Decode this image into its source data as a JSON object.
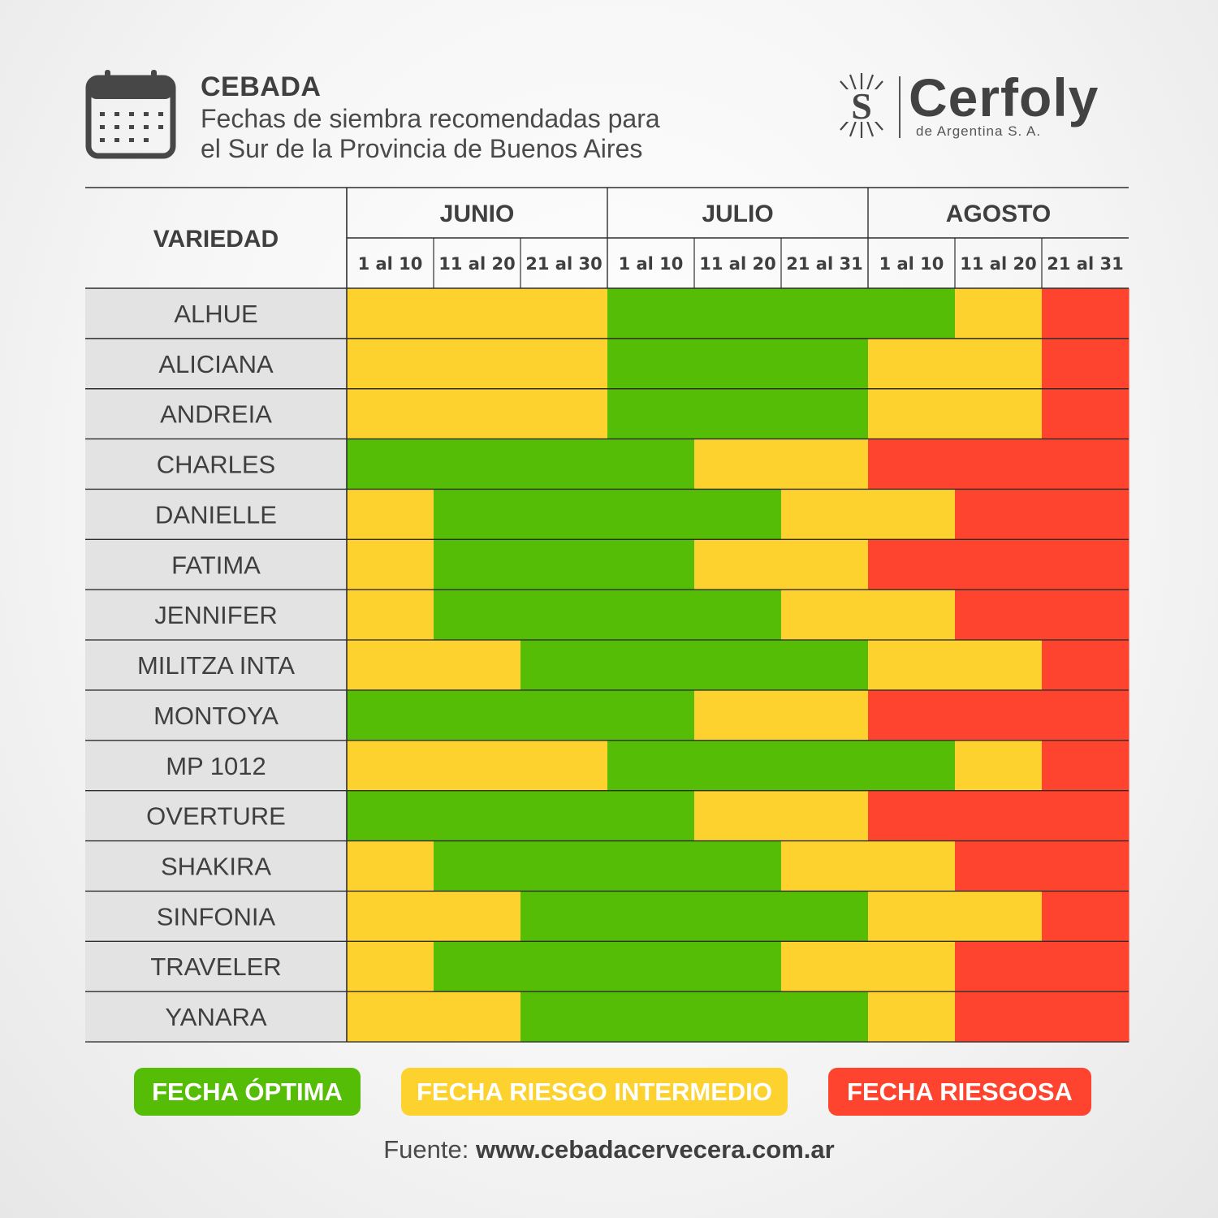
{
  "header": {
    "title": "CEBADA",
    "subtitle_line1": "Fechas de siembra recomendadas para",
    "subtitle_line2": "el Sur de la Provincia de Buenos Aires",
    "calendar_icon": "calendar-icon"
  },
  "logo": {
    "name": "Cerfoly",
    "subname": "de Argentina S. A.",
    "mark_letter": "S"
  },
  "colors": {
    "optima": "#55bd06",
    "intermedio": "#fdd22e",
    "riesgosa": "#fe442f",
    "row_label_bg": "#e3e3e3",
    "text": "#3f3f3f"
  },
  "chart_data": {
    "type": "heatmap",
    "row_header": "VARIEDAD",
    "months": [
      "JUNIO",
      "JULIO",
      "AGOSTO"
    ],
    "periods": [
      "1 al 10",
      "11 al 20",
      "21 al 30",
      "1 al 10",
      "11 al 20",
      "21 al 31",
      "1 al 10",
      "11 al 20",
      "21 al 31"
    ],
    "varieties": [
      {
        "name": "ALHUE",
        "bands": [
          [
            "I",
            0,
            3
          ],
          [
            "O",
            3,
            7
          ],
          [
            "I",
            7,
            8
          ],
          [
            "R",
            8,
            9
          ]
        ]
      },
      {
        "name": "ALICIANA",
        "bands": [
          [
            "I",
            0,
            3
          ],
          [
            "O",
            3,
            6
          ],
          [
            "I",
            6,
            8
          ],
          [
            "R",
            8,
            9
          ]
        ]
      },
      {
        "name": "ANDREIA",
        "bands": [
          [
            "I",
            0,
            3
          ],
          [
            "O",
            3,
            6
          ],
          [
            "I",
            6,
            8
          ],
          [
            "R",
            8,
            9
          ]
        ]
      },
      {
        "name": "CHARLES",
        "bands": [
          [
            "O",
            0,
            4
          ],
          [
            "I",
            4,
            6
          ],
          [
            "R",
            6,
            9
          ]
        ]
      },
      {
        "name": "DANIELLE",
        "bands": [
          [
            "I",
            0,
            1
          ],
          [
            "O",
            1,
            5
          ],
          [
            "I",
            5,
            7
          ],
          [
            "R",
            7,
            9
          ]
        ]
      },
      {
        "name": "FATIMA",
        "bands": [
          [
            "I",
            0,
            1
          ],
          [
            "O",
            1,
            4
          ],
          [
            "I",
            4,
            6
          ],
          [
            "R",
            6,
            9
          ]
        ]
      },
      {
        "name": "JENNIFER",
        "bands": [
          [
            "I",
            0,
            1
          ],
          [
            "O",
            1,
            5
          ],
          [
            "I",
            5,
            7
          ],
          [
            "R",
            7,
            9
          ]
        ]
      },
      {
        "name": "MILITZA INTA",
        "bands": [
          [
            "I",
            0,
            2
          ],
          [
            "O",
            2,
            6
          ],
          [
            "I",
            6,
            8
          ],
          [
            "R",
            8,
            9
          ]
        ]
      },
      {
        "name": "MONTOYA",
        "bands": [
          [
            "O",
            0,
            4
          ],
          [
            "I",
            4,
            6
          ],
          [
            "R",
            6,
            9
          ]
        ]
      },
      {
        "name": "MP 1012",
        "bands": [
          [
            "I",
            0,
            3
          ],
          [
            "O",
            3,
            7
          ],
          [
            "I",
            7,
            8
          ],
          [
            "R",
            8,
            9
          ]
        ]
      },
      {
        "name": "OVERTURE",
        "bands": [
          [
            "O",
            0,
            4
          ],
          [
            "I",
            4,
            6
          ],
          [
            "R",
            6,
            9
          ]
        ]
      },
      {
        "name": "SHAKIRA",
        "bands": [
          [
            "I",
            0,
            1
          ],
          [
            "O",
            1,
            5
          ],
          [
            "I",
            5,
            7
          ],
          [
            "R",
            7,
            9
          ]
        ]
      },
      {
        "name": "SINFONIA",
        "bands": [
          [
            "I",
            0,
            2
          ],
          [
            "O",
            2,
            6
          ],
          [
            "I",
            6,
            8
          ],
          [
            "R",
            8,
            9
          ]
        ]
      },
      {
        "name": "TRAVELER",
        "bands": [
          [
            "I",
            0,
            1
          ],
          [
            "O",
            1,
            5
          ],
          [
            "I",
            5,
            7
          ],
          [
            "R",
            7,
            9
          ]
        ]
      },
      {
        "name": "YANARA",
        "bands": [
          [
            "I",
            0,
            2
          ],
          [
            "O",
            2,
            6
          ],
          [
            "I",
            6,
            7
          ],
          [
            "R",
            7,
            9
          ]
        ]
      }
    ],
    "legend": [
      {
        "code": "O",
        "label": "FECHA ÓPTIMA"
      },
      {
        "code": "I",
        "label": "FECHA RIESGO INTERMEDIO"
      },
      {
        "code": "R",
        "label": "FECHA RIESGOSA"
      }
    ]
  },
  "source": {
    "prefix": "Fuente: ",
    "url": "www.cebadacervecera.com.ar"
  }
}
